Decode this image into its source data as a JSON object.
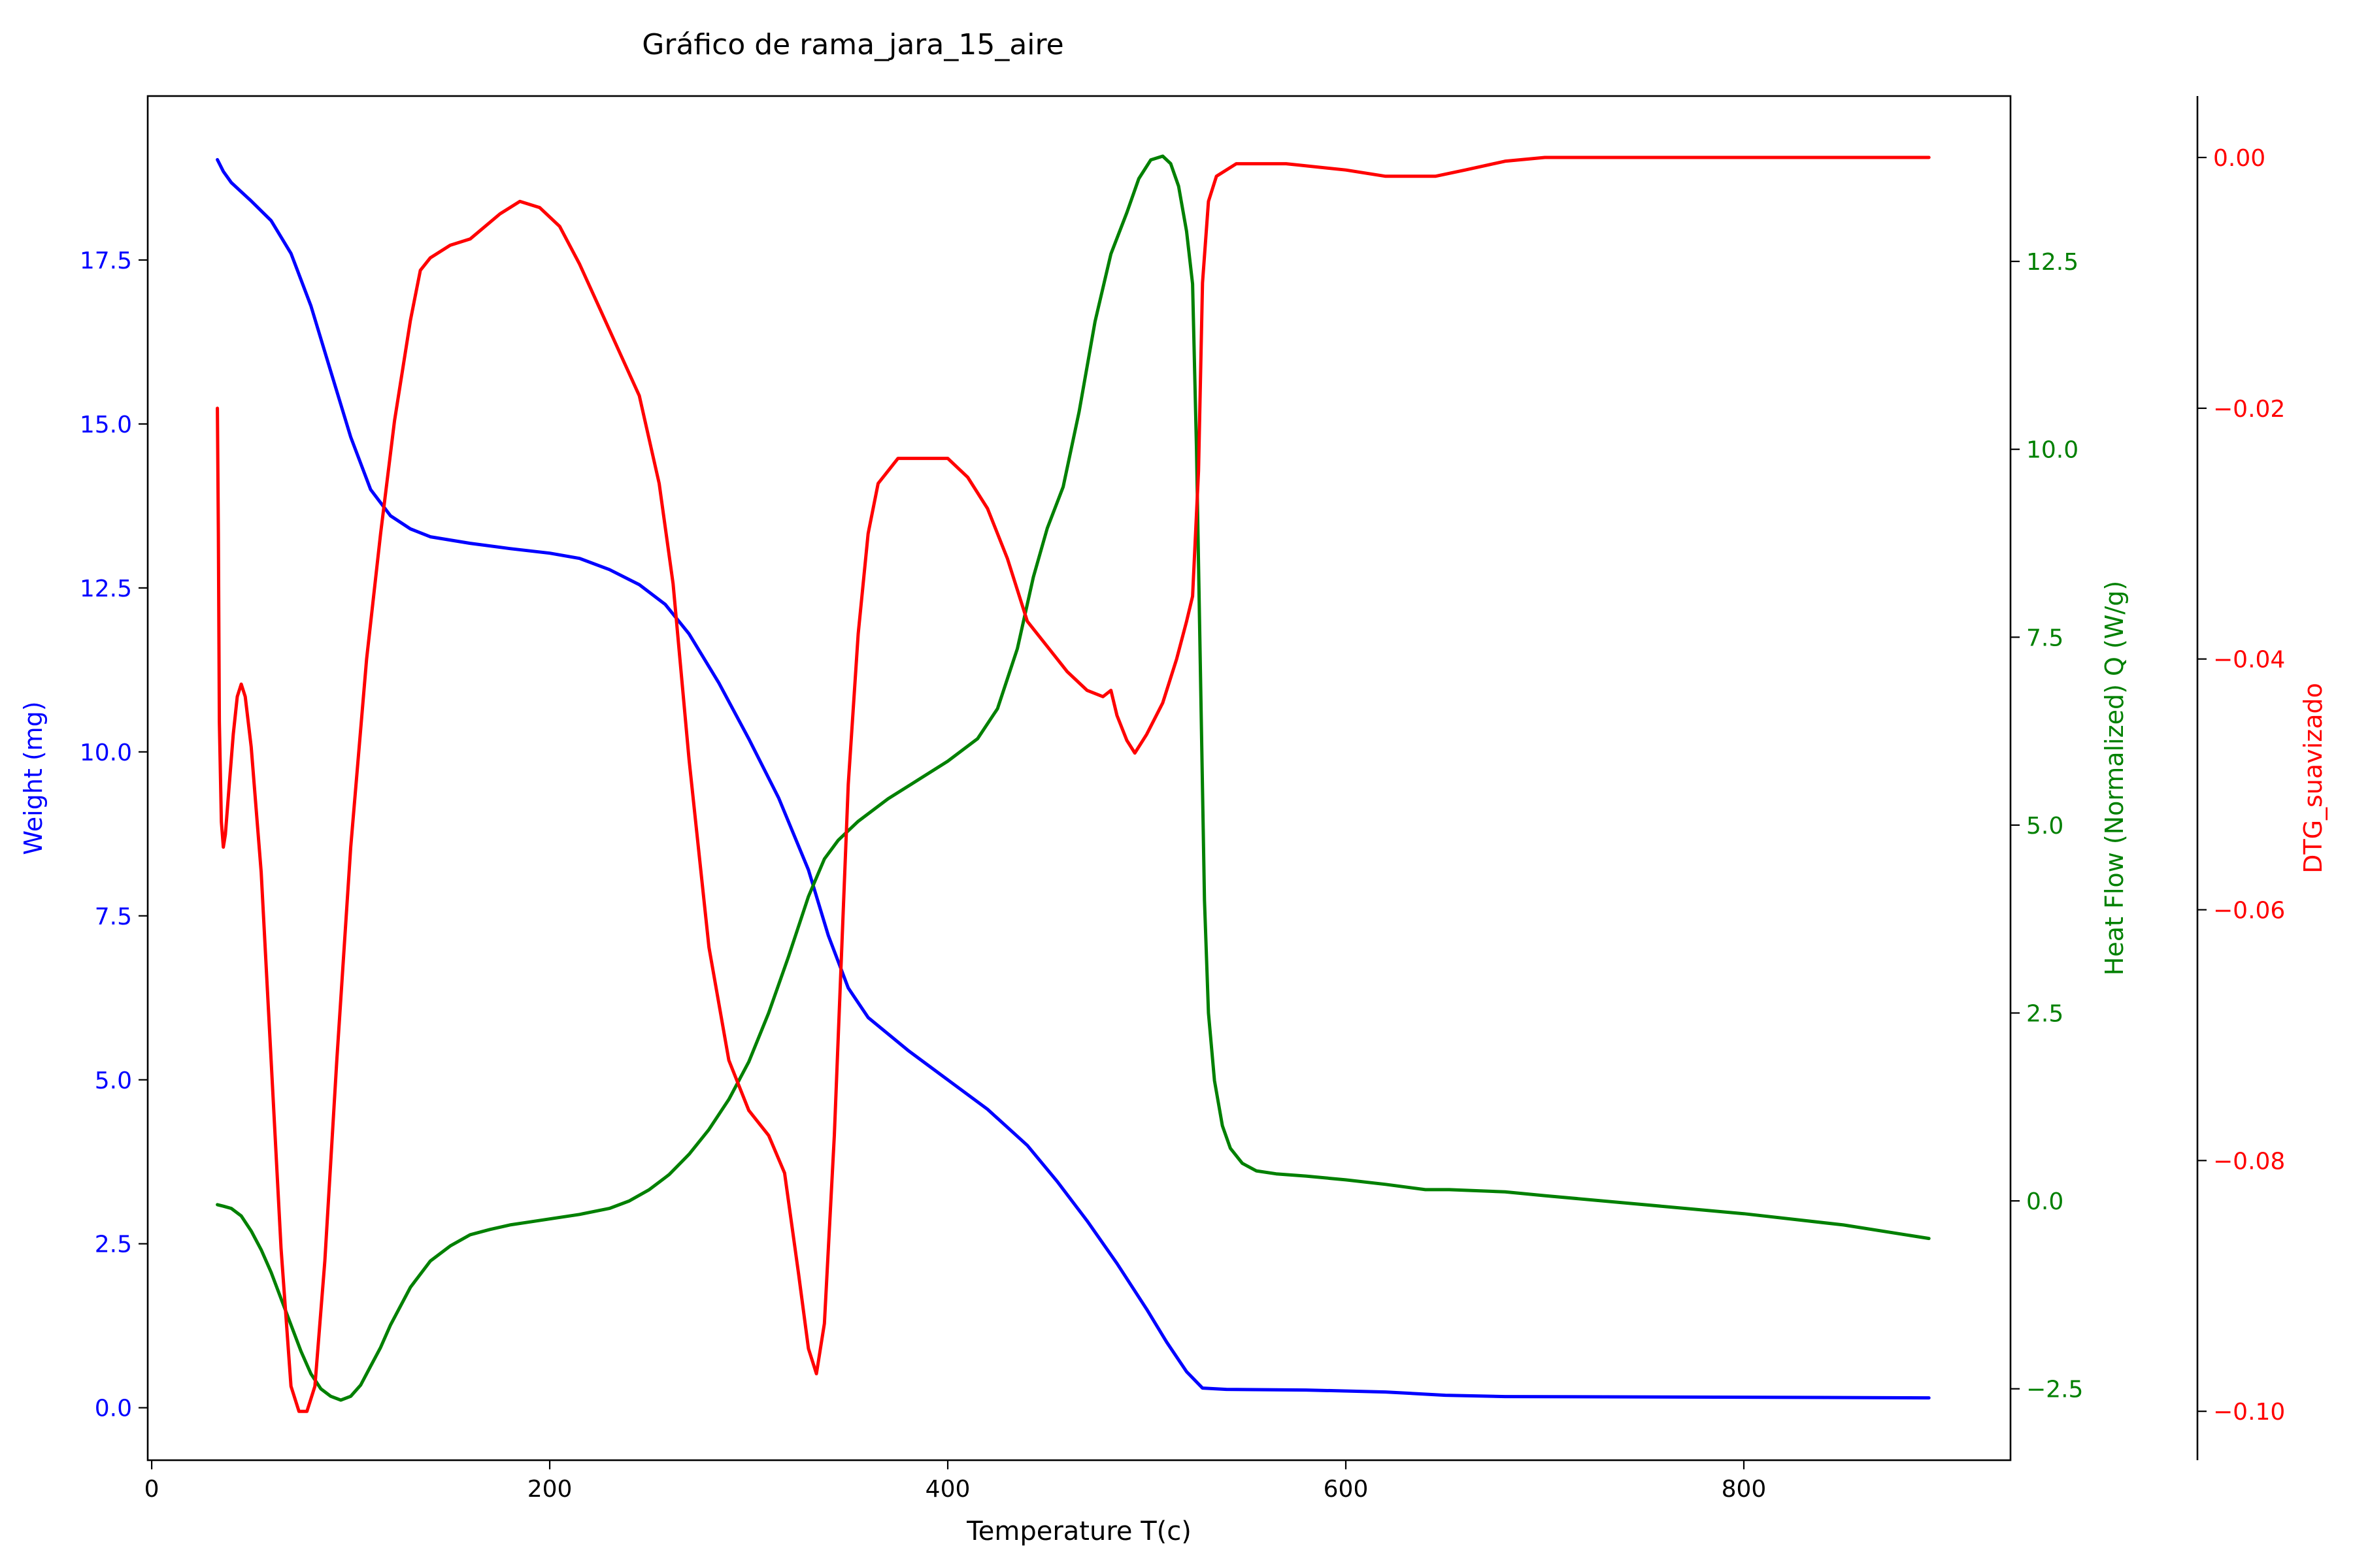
{
  "chart_data": {
    "type": "line",
    "title": "Gráfico de rama_jara_15_aire",
    "xlabel": "Temperature T(c)",
    "xlim": [
      -2,
      934
    ],
    "x_ticks": [
      0,
      200,
      400,
      600,
      800
    ],
    "grid": false,
    "legend": "none",
    "axes": [
      {
        "id": "weight",
        "label": "Weight (mg)",
        "side": "left",
        "color": "#0000ff",
        "ylim": [
          -0.8,
          20.0
        ],
        "ticks": [
          0.0,
          2.5,
          5.0,
          7.5,
          10.0,
          12.5,
          15.0,
          17.5
        ],
        "decimals": 1
      },
      {
        "id": "heat",
        "label": "Heat Flow (Normalized) Q (W/g)",
        "side": "right",
        "color": "#008000",
        "ylim": [
          -3.45,
          14.7
        ],
        "ticks": [
          -2.5,
          0.0,
          2.5,
          5.0,
          7.5,
          10.0,
          12.5
        ],
        "decimals": 1
      },
      {
        "id": "dtg",
        "label": "DTG_suavizado",
        "side": "right-outer",
        "color": "#ff0000",
        "ylim": [
          -0.1039,
          0.0049
        ],
        "ticks": [
          -0.1,
          -0.08,
          -0.06,
          -0.04,
          -0.02,
          0.0
        ],
        "decimals": 2
      }
    ],
    "series": [
      {
        "axis": "weight",
        "color": "#0000ff",
        "points": [
          [
            33,
            19.03
          ],
          [
            36,
            18.85
          ],
          [
            40,
            18.68
          ],
          [
            50,
            18.4
          ],
          [
            60,
            18.1
          ],
          [
            70,
            17.6
          ],
          [
            80,
            16.8
          ],
          [
            90,
            15.8
          ],
          [
            100,
            14.8
          ],
          [
            110,
            14.0
          ],
          [
            120,
            13.6
          ],
          [
            130,
            13.4
          ],
          [
            140,
            13.28
          ],
          [
            160,
            13.18
          ],
          [
            180,
            13.1
          ],
          [
            200,
            13.03
          ],
          [
            215,
            12.95
          ],
          [
            230,
            12.78
          ],
          [
            245,
            12.55
          ],
          [
            258,
            12.25
          ],
          [
            270,
            11.8
          ],
          [
            285,
            11.05
          ],
          [
            300,
            10.2
          ],
          [
            315,
            9.3
          ],
          [
            330,
            8.2
          ],
          [
            340,
            7.2
          ],
          [
            350,
            6.4
          ],
          [
            360,
            5.95
          ],
          [
            380,
            5.45
          ],
          [
            400,
            5.0
          ],
          [
            420,
            4.55
          ],
          [
            440,
            4.0
          ],
          [
            455,
            3.45
          ],
          [
            470,
            2.85
          ],
          [
            485,
            2.2
          ],
          [
            500,
            1.5
          ],
          [
            510,
            1.0
          ],
          [
            520,
            0.55
          ],
          [
            528,
            0.3
          ],
          [
            540,
            0.28
          ],
          [
            580,
            0.27
          ],
          [
            620,
            0.24
          ],
          [
            650,
            0.19
          ],
          [
            680,
            0.17
          ],
          [
            800,
            0.16
          ],
          [
            893,
            0.15
          ]
        ]
      },
      {
        "axis": "heat",
        "color": "#008000",
        "points": [
          [
            33,
            -0.05
          ],
          [
            36,
            -0.07
          ],
          [
            40,
            -0.1
          ],
          [
            45,
            -0.2
          ],
          [
            50,
            -0.4
          ],
          [
            55,
            -0.65
          ],
          [
            60,
            -0.95
          ],
          [
            65,
            -1.3
          ],
          [
            70,
            -1.65
          ],
          [
            75,
            -2.0
          ],
          [
            80,
            -2.3
          ],
          [
            85,
            -2.5
          ],
          [
            90,
            -2.6
          ],
          [
            95,
            -2.65
          ],
          [
            100,
            -2.6
          ],
          [
            105,
            -2.45
          ],
          [
            110,
            -2.2
          ],
          [
            115,
            -1.95
          ],
          [
            120,
            -1.65
          ],
          [
            130,
            -1.15
          ],
          [
            140,
            -0.8
          ],
          [
            150,
            -0.6
          ],
          [
            160,
            -0.45
          ],
          [
            170,
            -0.38
          ],
          [
            180,
            -0.32
          ],
          [
            190,
            -0.28
          ],
          [
            200,
            -0.24
          ],
          [
            215,
            -0.18
          ],
          [
            230,
            -0.1
          ],
          [
            240,
            0.0
          ],
          [
            250,
            0.15
          ],
          [
            260,
            0.35
          ],
          [
            270,
            0.62
          ],
          [
            280,
            0.95
          ],
          [
            290,
            1.35
          ],
          [
            300,
            1.85
          ],
          [
            310,
            2.5
          ],
          [
            320,
            3.25
          ],
          [
            330,
            4.05
          ],
          [
            338,
            4.55
          ],
          [
            345,
            4.8
          ],
          [
            355,
            5.05
          ],
          [
            370,
            5.35
          ],
          [
            385,
            5.6
          ],
          [
            400,
            5.85
          ],
          [
            415,
            6.15
          ],
          [
            425,
            6.55
          ],
          [
            435,
            7.35
          ],
          [
            443,
            8.3
          ],
          [
            450,
            8.95
          ],
          [
            458,
            9.5
          ],
          [
            466,
            10.5
          ],
          [
            474,
            11.7
          ],
          [
            482,
            12.6
          ],
          [
            490,
            13.15
          ],
          [
            496,
            13.6
          ],
          [
            502,
            13.85
          ],
          [
            508,
            13.9
          ],
          [
            512,
            13.8
          ],
          [
            516,
            13.5
          ],
          [
            520,
            12.9
          ],
          [
            523,
            12.2
          ],
          [
            525,
            10.0
          ],
          [
            527,
            7.0
          ],
          [
            529,
            4.0
          ],
          [
            531,
            2.5
          ],
          [
            534,
            1.6
          ],
          [
            538,
            1.0
          ],
          [
            542,
            0.7
          ],
          [
            548,
            0.5
          ],
          [
            555,
            0.4
          ],
          [
            565,
            0.36
          ],
          [
            580,
            0.33
          ],
          [
            600,
            0.28
          ],
          [
            620,
            0.22
          ],
          [
            640,
            0.15
          ],
          [
            652,
            0.15
          ],
          [
            680,
            0.12
          ],
          [
            700,
            0.07
          ],
          [
            750,
            -0.05
          ],
          [
            800,
            -0.17
          ],
          [
            850,
            -0.32
          ],
          [
            893,
            -0.5
          ]
        ]
      },
      {
        "axis": "dtg",
        "color": "#ff0000",
        "points": [
          [
            33,
            -0.02
          ],
          [
            33.5,
            -0.03
          ],
          [
            34,
            -0.045
          ],
          [
            35,
            -0.053
          ],
          [
            36,
            -0.055
          ],
          [
            37,
            -0.054
          ],
          [
            39,
            -0.05
          ],
          [
            41,
            -0.046
          ],
          [
            43,
            -0.043
          ],
          [
            45,
            -0.042
          ],
          [
            47,
            -0.043
          ],
          [
            50,
            -0.047
          ],
          [
            55,
            -0.057
          ],
          [
            60,
            -0.072
          ],
          [
            65,
            -0.087
          ],
          [
            70,
            -0.098
          ],
          [
            74,
            -0.1
          ],
          [
            78,
            -0.1
          ],
          [
            82,
            -0.098
          ],
          [
            87,
            -0.088
          ],
          [
            93,
            -0.072
          ],
          [
            100,
            -0.055
          ],
          [
            108,
            -0.04
          ],
          [
            115,
            -0.03
          ],
          [
            122,
            -0.021
          ],
          [
            130,
            -0.013
          ],
          [
            135,
            -0.009
          ],
          [
            140,
            -0.008
          ],
          [
            150,
            -0.007
          ],
          [
            160,
            -0.0065
          ],
          [
            175,
            -0.0045
          ],
          [
            185,
            -0.0035
          ],
          [
            195,
            -0.004
          ],
          [
            205,
            -0.0055
          ],
          [
            215,
            -0.0085
          ],
          [
            225,
            -0.012
          ],
          [
            235,
            -0.0155
          ],
          [
            245,
            -0.019
          ],
          [
            255,
            -0.026
          ],
          [
            262,
            -0.034
          ],
          [
            270,
            -0.048
          ],
          [
            280,
            -0.063
          ],
          [
            290,
            -0.072
          ],
          [
            300,
            -0.076
          ],
          [
            310,
            -0.078
          ],
          [
            318,
            -0.081
          ],
          [
            325,
            -0.089
          ],
          [
            330,
            -0.095
          ],
          [
            334,
            -0.097
          ],
          [
            338,
            -0.093
          ],
          [
            343,
            -0.078
          ],
          [
            350,
            -0.05
          ],
          [
            355,
            -0.038
          ],
          [
            360,
            -0.03
          ],
          [
            365,
            -0.026
          ],
          [
            370,
            -0.025
          ],
          [
            375,
            -0.024
          ],
          [
            390,
            -0.024
          ],
          [
            400,
            -0.024
          ],
          [
            410,
            -0.0255
          ],
          [
            420,
            -0.028
          ],
          [
            430,
            -0.032
          ],
          [
            440,
            -0.037
          ],
          [
            450,
            -0.039
          ],
          [
            460,
            -0.041
          ],
          [
            470,
            -0.0425
          ],
          [
            478,
            -0.043
          ],
          [
            482,
            -0.0425
          ],
          [
            485,
            -0.0445
          ],
          [
            490,
            -0.0465
          ],
          [
            494,
            -0.0475
          ],
          [
            500,
            -0.046
          ],
          [
            508,
            -0.0435
          ],
          [
            515,
            -0.04
          ],
          [
            520,
            -0.037
          ],
          [
            523,
            -0.035
          ],
          [
            526,
            -0.025
          ],
          [
            528,
            -0.01
          ],
          [
            531,
            -0.0035
          ],
          [
            535,
            -0.0015
          ],
          [
            545,
            -0.0005
          ],
          [
            570,
            -0.0005
          ],
          [
            600,
            -0.001
          ],
          [
            620,
            -0.0015
          ],
          [
            645,
            -0.0015
          ],
          [
            660,
            -0.001
          ],
          [
            680,
            -0.0003
          ],
          [
            700,
            0.0
          ],
          [
            893,
            0.0
          ]
        ]
      }
    ]
  }
}
